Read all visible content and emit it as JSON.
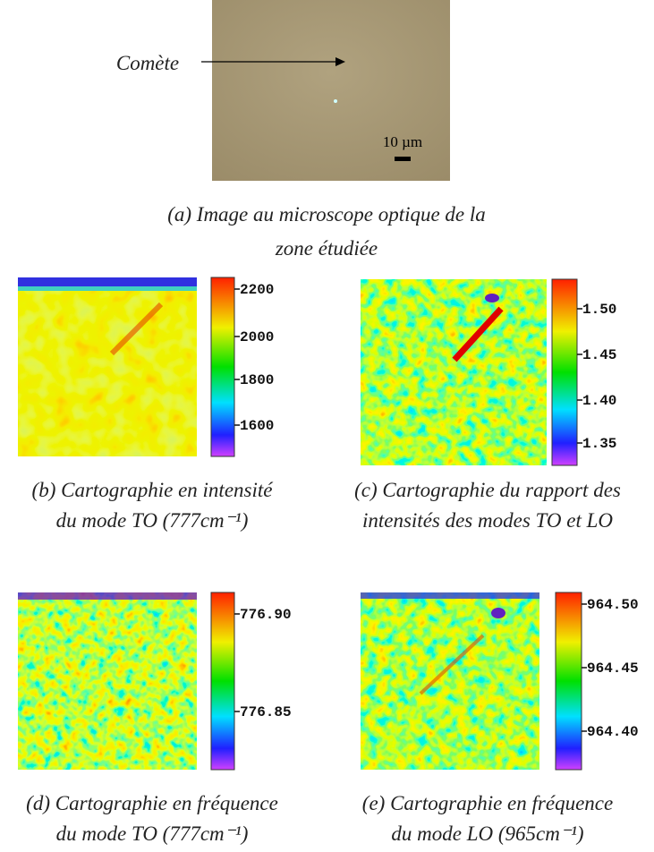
{
  "annotation": "Comète",
  "scale_bar": "10 µm",
  "panels": [
    {
      "caption": [
        "(a) Image au microscope optique de la",
        "zone étudiée"
      ]
    },
    {
      "caption": [
        "(b) Cartographie en intensité",
        "du mode TO (777cm⁻¹)"
      ],
      "colorbar": [
        "2200",
        "2000",
        "1800",
        "1600"
      ]
    },
    {
      "caption": [
        "(c) Cartographie du rapport des",
        "intensités des modes TO et LO"
      ],
      "colorbar": [
        "1.50",
        "1.45",
        "1.40",
        "1.35"
      ]
    },
    {
      "caption": [
        "(d) Cartographie en fréquence",
        "du mode TO (777cm⁻¹)"
      ],
      "colorbar": [
        "776.90",
        "776.85"
      ]
    },
    {
      "caption": [
        "(e) Cartographie en fréquence",
        "du mode LO (965cm⁻¹)"
      ],
      "colorbar": [
        "964.50",
        "964.45",
        "964.40"
      ]
    }
  ]
}
